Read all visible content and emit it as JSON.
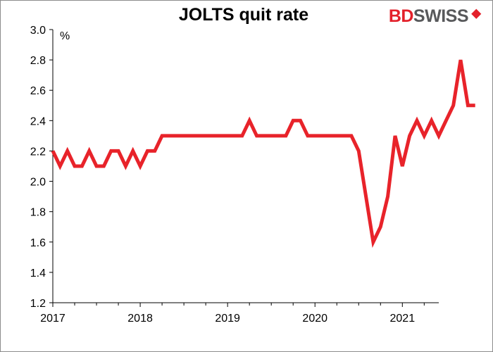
{
  "header": {
    "title": "JOLTS quit rate",
    "logo_part1": "BD",
    "logo_part2": "SWISS"
  },
  "colors": {
    "line": "#e8232a",
    "axis": "#000000",
    "logo_red": "#e3212b",
    "logo_gray": "#58595b"
  },
  "chart_data": {
    "type": "line",
    "title": "JOLTS quit rate",
    "ylabel": "%",
    "xlabel": "",
    "ylim": [
      1.2,
      3.0
    ],
    "yticks": [
      1.2,
      1.4,
      1.6,
      1.8,
      2.0,
      2.2,
      2.4,
      2.6,
      2.8,
      3.0
    ],
    "ytick_labels": [
      "1.2",
      "1.4",
      "1.6",
      "1.8",
      "2.0",
      "2.2",
      "2.4",
      "2.6",
      "2.8",
      "3.0"
    ],
    "xlim": [
      2017.0,
      2021.4167
    ],
    "xticks": [
      2017,
      2018,
      2019,
      2020,
      2021
    ],
    "xtick_labels": [
      "2017",
      "2018",
      "2019",
      "2020",
      "2021"
    ],
    "grid": false,
    "series": [
      {
        "name": "JOLTS quit rate",
        "start": "2017-01",
        "frequency": "monthly",
        "values": [
          2.2,
          2.1,
          2.2,
          2.1,
          2.1,
          2.2,
          2.1,
          2.1,
          2.2,
          2.2,
          2.1,
          2.2,
          2.1,
          2.2,
          2.2,
          2.3,
          2.3,
          2.3,
          2.3,
          2.3,
          2.3,
          2.3,
          2.3,
          2.3,
          2.3,
          2.3,
          2.3,
          2.4,
          2.3,
          2.3,
          2.3,
          2.3,
          2.3,
          2.4,
          2.4,
          2.3,
          2.3,
          2.3,
          2.3,
          2.3,
          2.3,
          2.3,
          2.2,
          1.9,
          1.6,
          1.7,
          1.9,
          2.3,
          2.1,
          2.3,
          2.4,
          2.3,
          2.4,
          2.3,
          2.4,
          2.5,
          2.8,
          2.5,
          2.5
        ]
      }
    ]
  }
}
